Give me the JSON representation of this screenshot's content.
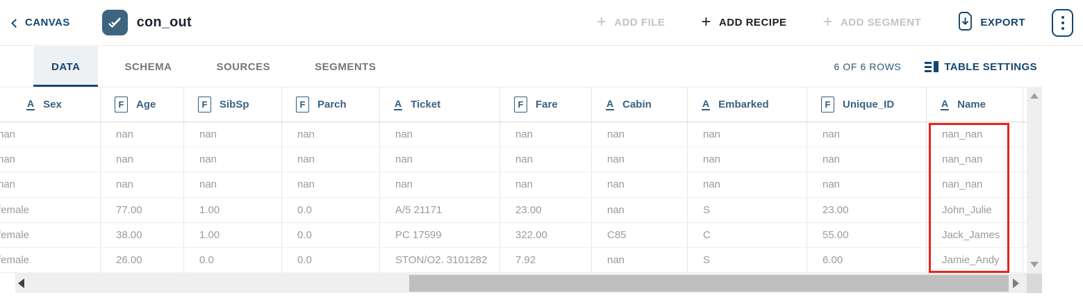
{
  "topbar": {
    "back_label": "CANVAS",
    "title": "con_out",
    "add_file_label": "ADD FILE",
    "add_recipe_label": "ADD RECIPE",
    "add_segment_label": "ADD SEGMENT",
    "export_label": "EXPORT",
    "plus_glyph": "+"
  },
  "tabs": {
    "items": [
      {
        "label": "DATA",
        "active": true
      },
      {
        "label": "SCHEMA",
        "active": false
      },
      {
        "label": "SOURCES",
        "active": false
      },
      {
        "label": "SEGMENTS",
        "active": false
      }
    ],
    "row_count": "6 OF 6 ROWS",
    "table_settings_label": "TABLE SETTINGS"
  },
  "table": {
    "columns": [
      {
        "name": "Sex",
        "type": "text"
      },
      {
        "name": "Age",
        "type": "float"
      },
      {
        "name": "SibSp",
        "type": "float"
      },
      {
        "name": "Parch",
        "type": "float"
      },
      {
        "name": "Ticket",
        "type": "text"
      },
      {
        "name": "Fare",
        "type": "float"
      },
      {
        "name": "Cabin",
        "type": "text"
      },
      {
        "name": "Embarked",
        "type": "text"
      },
      {
        "name": "Unique_ID",
        "type": "float"
      },
      {
        "name": "Name",
        "type": "text"
      }
    ],
    "type_glyphs": {
      "text": "A",
      "float": "F"
    },
    "rows": [
      [
        "nan",
        "nan",
        "nan",
        "nan",
        "nan",
        "nan",
        "nan",
        "nan",
        "nan",
        "nan_nan"
      ],
      [
        "nan",
        "nan",
        "nan",
        "nan",
        "nan",
        "nan",
        "nan",
        "nan",
        "nan",
        "nan_nan"
      ],
      [
        "nan",
        "nan",
        "nan",
        "nan",
        "nan",
        "nan",
        "nan",
        "nan",
        "nan",
        "nan_nan"
      ],
      [
        "female",
        "77.00",
        "1.00",
        "0.0",
        "A/5 21171",
        "23.00",
        "nan",
        "S",
        "23.00",
        "John_Julie"
      ],
      [
        "female",
        "38.00",
        "1.00",
        "0.0",
        "PC 17599",
        "322.00",
        "C85",
        "C",
        "55.00",
        "Jack_James"
      ],
      [
        "female",
        "26.00",
        "0.0",
        "0.0",
        "STON/O2. 3101282",
        "7.92",
        "nan",
        "S",
        "6.00",
        "Jamie_Andy"
      ]
    ],
    "highlight": {
      "column": "Name",
      "rows": "all",
      "color": "#e8231d"
    }
  },
  "icons": {
    "back": "chevron-left-icon",
    "title": "double-check-icon",
    "add": "plus-icon",
    "export": "file-download-icon",
    "more": "kebab-menu-icon",
    "table_settings": "panel-list-icon",
    "text_column": "underlined-a-icon",
    "float_column": "boxed-f-icon",
    "scroll": [
      "up-arrow-icon",
      "down-arrow-icon",
      "left-arrow-icon",
      "right-arrow-icon"
    ]
  },
  "colors": {
    "navy": "#14466f",
    "header_label": "#3a6183",
    "body_text": "#9a9a9a",
    "disabled": "#c3c3c3",
    "highlight_red": "#e8231d",
    "title_icon_bg": "#3e6480",
    "active_tab_bg": "#eef1f4"
  }
}
